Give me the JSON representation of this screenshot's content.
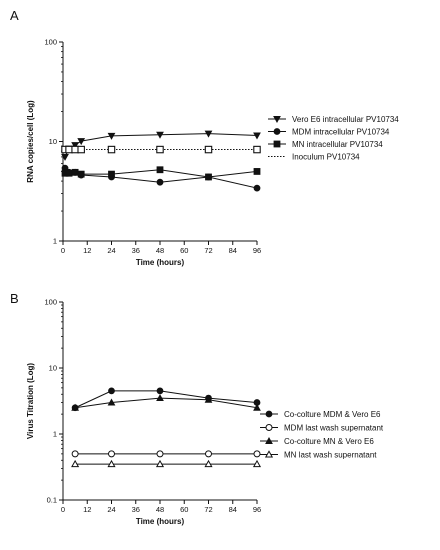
{
  "chart_data": [
    {
      "panel_label": "A",
      "type": "line",
      "xlabel": "Time (hours)",
      "ylabel": "RNA copies/cell (Log)",
      "xlim": [
        0,
        96
      ],
      "ylim": [
        1,
        100
      ],
      "y_scale": "log",
      "x_ticks": [
        "0",
        "12",
        "24",
        "36",
        "48",
        "60",
        "72",
        "84",
        "96"
      ],
      "y_ticks": [
        "1",
        "10",
        "100"
      ],
      "grid": false,
      "legend_position": "right",
      "series": [
        {
          "name": "Vero E6 intracellular PV10734",
          "marker": "triangle-down",
          "line_style": "solid",
          "x": [
            1,
            3,
            6,
            9,
            24,
            48,
            72,
            96
          ],
          "y": [
            7.0,
            8.5,
            9.2,
            10.1,
            11.4,
            11.7,
            12.0,
            11.5
          ]
        },
        {
          "name": "MDM intracellular PV10734",
          "marker": "circle-filled",
          "line_style": "solid",
          "x": [
            1,
            3,
            6,
            9,
            24,
            48,
            72,
            96
          ],
          "y": [
            5.4,
            4.9,
            4.9,
            4.6,
            4.4,
            3.9,
            4.4,
            3.4
          ]
        },
        {
          "name": "MN intracellular PV10734",
          "marker": "square-filled",
          "line_style": "solid",
          "x": [
            1,
            3,
            6,
            9,
            24,
            48,
            72,
            96
          ],
          "y": [
            4.8,
            4.8,
            4.9,
            4.7,
            4.7,
            5.2,
            4.4,
            5.0
          ]
        },
        {
          "name": "Inoculum PV10734",
          "marker": "square-open",
          "line_style": "dotted",
          "x": [
            1,
            3,
            6,
            9,
            24,
            48,
            72,
            96
          ],
          "y": [
            8.3,
            8.3,
            8.3,
            8.3,
            8.3,
            8.3,
            8.3,
            8.3
          ]
        }
      ]
    },
    {
      "panel_label": "B",
      "type": "line",
      "xlabel": "Time (hours)",
      "ylabel": "Virus Titration (Log)",
      "xlim": [
        0,
        96
      ],
      "ylim": [
        0.1,
        100
      ],
      "y_scale": "log",
      "x_ticks": [
        "0",
        "12",
        "24",
        "36",
        "48",
        "60",
        "72",
        "84",
        "96"
      ],
      "y_ticks": [
        "0.1",
        "1",
        "10",
        "100"
      ],
      "grid": false,
      "legend_position": "right",
      "series": [
        {
          "name": "Co-colture MDM & Vero E6",
          "marker": "circle-filled",
          "line_style": "solid",
          "x": [
            6,
            24,
            48,
            72,
            96
          ],
          "y": [
            2.5,
            4.5,
            4.5,
            3.5,
            3.0
          ]
        },
        {
          "name": "MDM last wash supernatant",
          "marker": "circle-open",
          "line_style": "solid",
          "x": [
            6,
            24,
            48,
            72,
            96
          ],
          "y": [
            0.5,
            0.5,
            0.5,
            0.5,
            0.5
          ]
        },
        {
          "name": "Co-colture MN & Vero E6",
          "marker": "triangle-up-filled",
          "line_style": "solid",
          "x": [
            6,
            24,
            48,
            72,
            96
          ],
          "y": [
            2.5,
            3.0,
            3.5,
            3.3,
            2.5
          ]
        },
        {
          "name": "MN last wash supernatant",
          "marker": "triangle-up-open",
          "line_style": "solid",
          "x": [
            6,
            24,
            48,
            72,
            96
          ],
          "y": [
            0.35,
            0.35,
            0.35,
            0.35,
            0.35
          ]
        }
      ]
    }
  ]
}
